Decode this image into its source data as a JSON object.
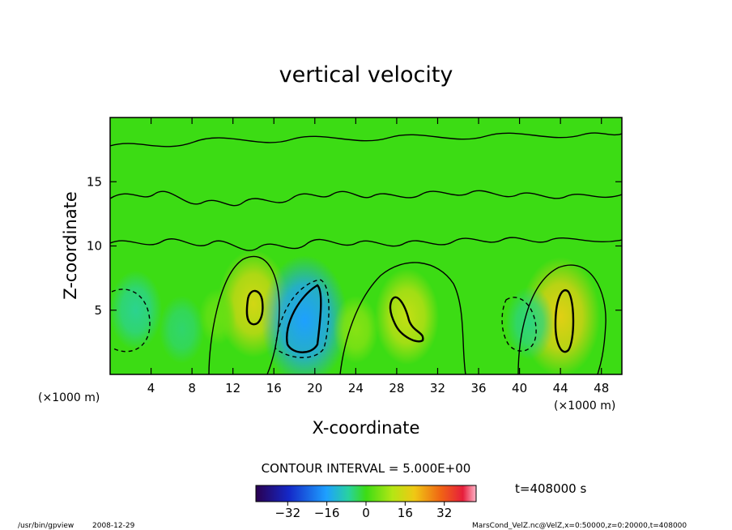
{
  "chart_data": {
    "type": "heatmap",
    "title": "vertical velocity",
    "xlabel": "X-coordinate",
    "ylabel": "Z-coordinate",
    "x_unit": "(×1000 m)",
    "y_unit": "(×1000 m)",
    "xlim": [
      0,
      50
    ],
    "ylim": [
      0,
      20
    ],
    "x_ticks": [
      "4",
      "8",
      "12",
      "16",
      "20",
      "24",
      "28",
      "32",
      "36",
      "40",
      "44",
      "48"
    ],
    "x_tick_values": [
      4,
      8,
      12,
      16,
      20,
      24,
      28,
      32,
      36,
      40,
      44,
      48
    ],
    "y_ticks": [
      "5",
      "10",
      "15"
    ],
    "y_tick_values": [
      5,
      10,
      15
    ],
    "contour_interval_text": "CONTOUR INTERVAL = 5.000E+00",
    "time_text": "t=408000 s",
    "colorbar": {
      "min": -45,
      "max": 45,
      "ticks": [
        "−32",
        "−16",
        "0",
        "16",
        "32"
      ],
      "tick_values": [
        -32,
        -16,
        0,
        16,
        32
      ]
    },
    "field_features": [
      {
        "x": 14,
        "z": 5.5,
        "value": 12
      },
      {
        "x": 19,
        "z": 4.2,
        "value": -16
      },
      {
        "x": 29,
        "z": 4.5,
        "value": 10
      },
      {
        "x": 44,
        "z": 4.5,
        "value": 14
      },
      {
        "x": 2.5,
        "z": 5.0,
        "value": -7
      },
      {
        "x": 7,
        "z": 3.5,
        "value": -5
      },
      {
        "x": 41,
        "z": 4.0,
        "value": -6
      },
      {
        "x": 10.5,
        "z": 4.5,
        "value": 3
      },
      {
        "x": 24,
        "z": 3.5,
        "value": 5
      }
    ]
  },
  "footer": {
    "program": "/usr/bin/gpview",
    "date": "2008-12-29",
    "source": "MarsCond_VelZ.nc@VelZ,x=0:50000,z=0:20000,t=408000"
  },
  "colors": {
    "background": "#ffffff",
    "field_zero": "#3cdc14"
  }
}
